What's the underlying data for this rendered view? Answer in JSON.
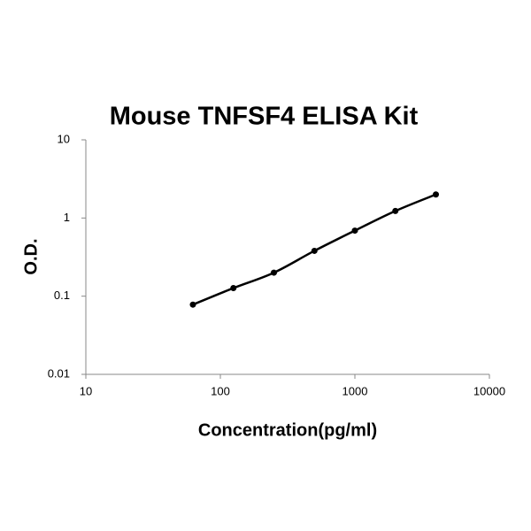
{
  "chart_data": {
    "type": "line",
    "title": "Mouse TNFSF4 ELISA Kit",
    "x_label": "Concentration(pg/ml)",
    "y_label": "O.D.",
    "x": [
      62.5,
      125,
      250,
      500,
      1000,
      2000,
      4000
    ],
    "values": [
      0.078,
      0.127,
      0.2,
      0.38,
      0.69,
      1.23,
      2.0
    ],
    "color": "#000000",
    "xlim": [
      10,
      10000
    ],
    "xticks": [
      10,
      100,
      1000,
      10000
    ],
    "ylim": [
      0.01,
      10
    ],
    "yticks": [
      0.01,
      0.1,
      1,
      10
    ],
    "x_log": true,
    "y_log": true,
    "grid": false
  }
}
